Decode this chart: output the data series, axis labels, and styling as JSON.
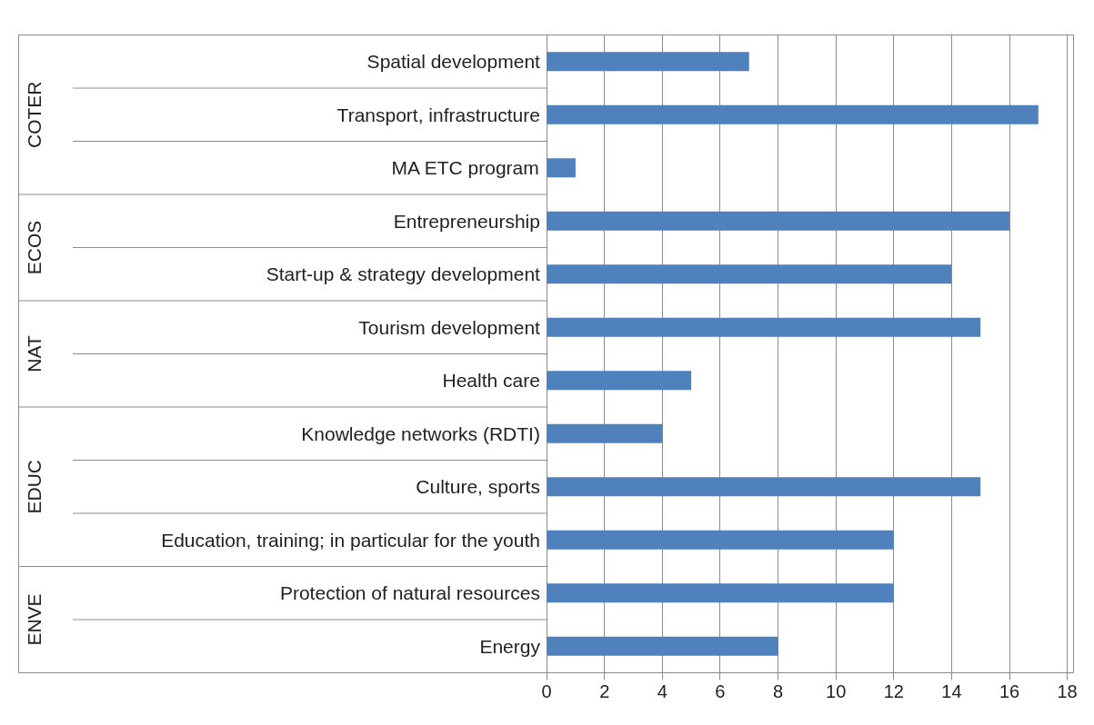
{
  "chart_data": {
    "type": "bar",
    "orientation": "horizontal",
    "categories": [
      "Spatial development",
      "Transport, infrastructure",
      "MA ETC program",
      "Entrepreneurship",
      "Start-up & strategy development",
      "Tourism development",
      "Health care",
      "Knowledge networks (RDTI)",
      "Culture, sports",
      "Education, training; in particular for the youth",
      "Protection of natural resources",
      "Energy"
    ],
    "values": [
      7,
      17,
      1,
      16,
      14,
      15,
      5,
      4,
      15,
      12,
      12,
      8
    ],
    "color": "#4f81bd",
    "xlim": [
      0,
      18
    ],
    "xticks": [
      0,
      2,
      4,
      6,
      8,
      10,
      12,
      14,
      16,
      18
    ],
    "grid": "x",
    "annotations": [
      "COTER",
      "ECOS",
      "NAT",
      "EDUC",
      "ENVE"
    ]
  }
}
